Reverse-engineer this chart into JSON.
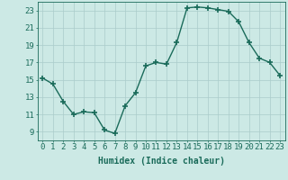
{
  "x": [
    0,
    1,
    2,
    3,
    4,
    5,
    6,
    7,
    8,
    9,
    10,
    11,
    12,
    13,
    14,
    15,
    16,
    17,
    18,
    19,
    20,
    21,
    22,
    23
  ],
  "y": [
    15.2,
    14.5,
    12.5,
    11.0,
    11.3,
    11.2,
    9.2,
    8.8,
    12.0,
    13.5,
    16.6,
    17.0,
    16.8,
    19.3,
    23.3,
    23.4,
    23.3,
    23.1,
    22.9,
    21.7,
    19.3,
    17.5,
    17.0,
    15.5
  ],
  "line_color": "#1a6b5a",
  "marker": "+",
  "marker_size": 4,
  "bg_color": "#cce9e5",
  "grid_color": "#aaccca",
  "xlabel": "Humidex (Indice chaleur)",
  "xlim": [
    -0.5,
    23.5
  ],
  "ylim": [
    8,
    24
  ],
  "yticks": [
    9,
    11,
    13,
    15,
    17,
    19,
    21,
    23
  ],
  "xtick_labels": [
    "0",
    "1",
    "2",
    "3",
    "4",
    "5",
    "6",
    "7",
    "8",
    "9",
    "10",
    "11",
    "12",
    "13",
    "14",
    "15",
    "16",
    "17",
    "18",
    "19",
    "20",
    "21",
    "22",
    "23"
  ],
  "xlabel_fontsize": 7,
  "tick_fontsize": 6.5,
  "label_color": "#1a6b5a",
  "spine_color": "#1a6b5a",
  "linewidth": 1.0,
  "marker_lw": 1.2
}
